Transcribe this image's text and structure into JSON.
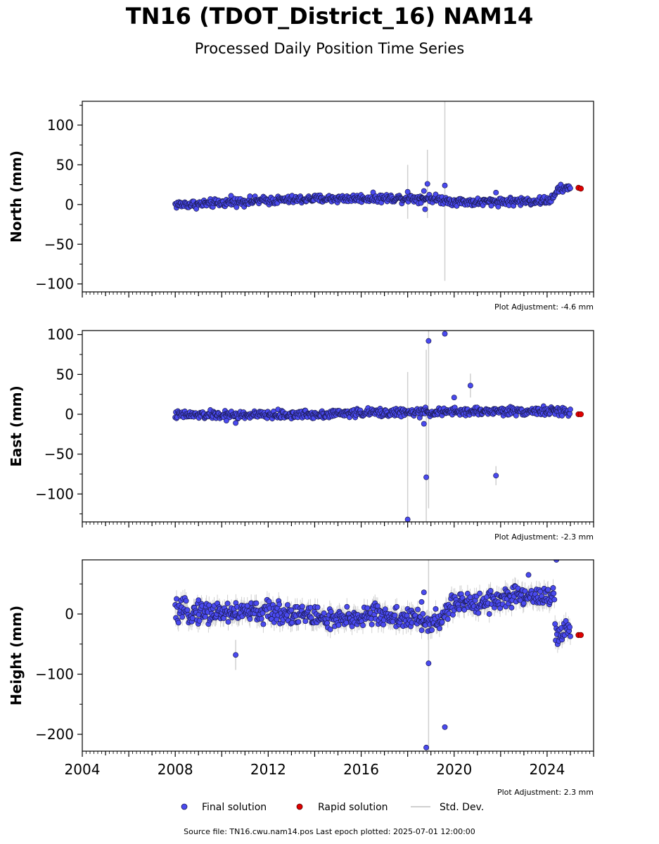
{
  "header": {
    "title": "TN16 (TDOT_District_16) NAM14",
    "subtitle": "Processed Daily Position Time Series"
  },
  "footer": {
    "source": "Source file: TN16.cwu.nam14.pos  Last epoch plotted: 2025-07-01 12:00:00"
  },
  "legend": {
    "placement": "bottom-center",
    "final_label": "Final solution",
    "rapid_label": "Rapid solution",
    "std_label": "Std. Dev."
  },
  "colors": {
    "final": "#4a4af0",
    "final_edge": "#1a1a50",
    "rapid": "#e00000",
    "std": "#d0d0d0"
  },
  "chart_data": [
    {
      "type": "scatter",
      "panel": "north",
      "ylabel": "North (mm)",
      "ylim": [
        -110,
        130
      ],
      "xlim": [
        2004,
        2026
      ],
      "yticks": [
        -100,
        -50,
        0,
        50,
        100
      ],
      "ytick_labels": [
        "−100",
        "−50",
        "0",
        "50",
        "100"
      ],
      "adjustment": "Plot Adjustment: -4.6 mm",
      "trend": [
        [
          2008.0,
          0
        ],
        [
          2009.0,
          0.5
        ],
        [
          2010.0,
          2
        ],
        [
          2011.0,
          4
        ],
        [
          2012.0,
          5
        ],
        [
          2013.0,
          6
        ],
        [
          2014.0,
          7
        ],
        [
          2015.0,
          7.5
        ],
        [
          2016.0,
          8
        ],
        [
          2017.0,
          8
        ],
        [
          2018.0,
          8
        ],
        [
          2019.0,
          8
        ],
        [
          2020.0,
          4
        ],
        [
          2021.0,
          3
        ],
        [
          2022.0,
          4
        ],
        [
          2023.0,
          4
        ],
        [
          2024.0,
          5
        ],
        [
          2024.3,
          8
        ],
        [
          2024.4,
          18
        ],
        [
          2024.7,
          20
        ],
        [
          2025.0,
          21
        ]
      ],
      "noise": 2.5,
      "outliers": [
        {
          "x": 2010.4,
          "y": 11,
          "s": 0
        },
        {
          "x": 2018.0,
          "y": 16,
          "s": 34
        },
        {
          "x": 2018.7,
          "y": 17,
          "s": 0
        },
        {
          "x": 2018.75,
          "y": -6,
          "s": 0
        },
        {
          "x": 2018.85,
          "y": 26,
          "s": 43
        },
        {
          "x": 2019.6,
          "y": 24,
          "s": 120
        },
        {
          "x": 2021.8,
          "y": 15,
          "s": 0
        }
      ],
      "rapid": [
        [
          2025.35,
          21
        ],
        [
          2025.45,
          20
        ]
      ]
    },
    {
      "type": "scatter",
      "panel": "east",
      "ylabel": "East (mm)",
      "ylim": [
        -135,
        105
      ],
      "xlim": [
        2004,
        2026
      ],
      "yticks": [
        -100,
        -50,
        0,
        50,
        100
      ],
      "ytick_labels": [
        "−100",
        "−50",
        "0",
        "50",
        "100"
      ],
      "adjustment": "Plot Adjustment: -2.3 mm",
      "trend": [
        [
          2008.0,
          -1
        ],
        [
          2010.0,
          -1
        ],
        [
          2012.0,
          -1
        ],
        [
          2014.0,
          0
        ],
        [
          2016.0,
          2
        ],
        [
          2018.0,
          2
        ],
        [
          2020.0,
          3
        ],
        [
          2022.0,
          4
        ],
        [
          2024.0,
          4
        ],
        [
          2025.0,
          3
        ]
      ],
      "noise": 2.5,
      "outliers": [
        {
          "x": 2010.2,
          "y": -8,
          "s": 0
        },
        {
          "x": 2010.6,
          "y": -11,
          "s": 0
        },
        {
          "x": 2018.0,
          "y": -132,
          "s": 185
        },
        {
          "x": 2018.7,
          "y": -12,
          "s": 0
        },
        {
          "x": 2018.8,
          "y": -79,
          "s": 160
        },
        {
          "x": 2018.9,
          "y": 92,
          "s": 210
        },
        {
          "x": 2019.6,
          "y": 101,
          "s": 0
        },
        {
          "x": 2020.0,
          "y": 21,
          "s": 0
        },
        {
          "x": 2020.7,
          "y": 36,
          "s": 15
        },
        {
          "x": 2021.8,
          "y": -77,
          "s": 12
        }
      ],
      "rapid": [
        [
          2025.35,
          0
        ],
        [
          2025.45,
          0
        ]
      ]
    },
    {
      "type": "scatter",
      "panel": "height",
      "ylabel": "Height (mm)",
      "ylim": [
        -228,
        90
      ],
      "xlim": [
        2004,
        2026
      ],
      "yticks": [
        -200,
        -100,
        0
      ],
      "ytick_labels": [
        "−200",
        "−100",
        "0"
      ],
      "adjustment": "Plot Adjustment: 2.3 mm",
      "xticks": [
        2004,
        2008,
        2012,
        2016,
        2020,
        2024
      ],
      "xtick_labels": [
        "2004",
        "2008",
        "2012",
        "2016",
        "2020",
        "2024"
      ],
      "trend": [
        [
          2008.0,
          3
        ],
        [
          2010.0,
          3
        ],
        [
          2012.0,
          3
        ],
        [
          2013.5,
          0
        ],
        [
          2015.0,
          -12
        ],
        [
          2016.5,
          0
        ],
        [
          2018.0,
          -8
        ],
        [
          2019.2,
          -15
        ],
        [
          2019.6,
          -5
        ],
        [
          2019.8,
          15
        ],
        [
          2021.0,
          20
        ],
        [
          2022.0,
          25
        ],
        [
          2023.0,
          30
        ],
        [
          2024.3,
          30
        ],
        [
          2024.35,
          -40
        ],
        [
          2025.0,
          -25
        ]
      ],
      "noise": 9,
      "outliers": [
        {
          "x": 2009.0,
          "y": 23,
          "s": 0
        },
        {
          "x": 2010.6,
          "y": -68,
          "s": 25
        },
        {
          "x": 2018.6,
          "y": 20,
          "s": 0
        },
        {
          "x": 2018.7,
          "y": 36,
          "s": 0
        },
        {
          "x": 2018.8,
          "y": -222,
          "s": 0
        },
        {
          "x": 2018.9,
          "y": -82,
          "s": 180
        },
        {
          "x": 2019.6,
          "y": -188,
          "s": 0
        },
        {
          "x": 2023.2,
          "y": 65,
          "s": 0
        },
        {
          "x": 2024.4,
          "y": 90,
          "s": 0
        }
      ],
      "rapid": [
        [
          2025.35,
          -35
        ],
        [
          2025.45,
          -35
        ]
      ]
    }
  ]
}
